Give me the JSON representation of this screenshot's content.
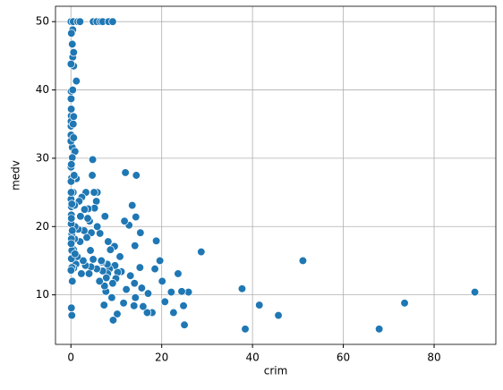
{
  "chart_data": {
    "type": "scatter",
    "x_label": "crim",
    "y_label": "medv",
    "color": "#1f77b4",
    "grid": true,
    "xlim": [
      -3.4,
      93.6
    ],
    "ylim": [
      2.75,
      52.25
    ],
    "xticks": [
      0,
      20,
      40,
      60,
      80
    ],
    "yticks": [
      10,
      20,
      30,
      40,
      50
    ],
    "x": [
      88.98,
      73.5,
      67.9,
      51.1,
      45.7,
      41.5,
      38.4,
      37.7,
      28.7,
      25.9,
      25.0,
      24.8,
      24.4,
      23.6,
      22.6,
      22.1,
      20.7,
      20.1,
      19.6,
      18.8,
      18.5,
      17.9,
      17.0,
      16.8,
      15.9,
      15.6,
      15.3,
      15.2,
      14.4,
      14.3,
      14.2,
      14.1,
      14.0,
      13.9,
      13.5,
      13.1,
      12.8,
      12.2,
      12.0,
      11.8,
      11.6,
      11.1,
      10.8,
      10.3,
      10.2,
      9.9,
      9.7,
      9.6,
      9.3,
      9.2,
      9.0,
      8.7,
      8.5,
      8.2,
      8.1,
      8.0,
      7.8,
      7.7,
      7.5,
      7.4,
      7.3,
      7.0,
      6.8,
      6.7,
      6.4,
      6.3,
      5.8,
      5.7,
      5.6,
      5.8,
      5.2,
      5.1,
      4.9,
      4.8,
      4.7,
      4.5,
      4.4,
      4.3,
      4.1,
      4.0,
      3.8,
      3.7,
      3.5,
      3.3,
      3.2,
      3.0,
      2.9,
      2.7,
      2.4,
      2.3,
      2.1,
      2.0,
      1.8,
      1.6,
      1.4,
      1.2,
      1.1,
      0.9,
      0.8,
      0.6,
      0.5,
      0.01,
      0.5,
      1.5,
      2.0,
      4.9,
      5.7,
      6.5,
      7.0,
      8.3,
      9.2,
      0.02,
      0.03,
      0.03,
      0.07,
      0.03,
      0.1,
      0.14,
      0.2,
      0.2,
      0.09,
      0.06,
      0.1,
      0.6,
      0.8,
      0.3,
      1.2,
      0.6,
      0.4,
      0.3,
      0.4,
      0.1,
      0.02,
      0.05,
      0.04,
      0.07,
      0.03,
      0.6,
      0.9,
      0.0,
      0.3,
      0.1,
      0.04,
      0.05,
      0.2,
      0.1,
      0.3,
      0.05,
      0.1,
      0.2,
      0.02,
      0.3,
      0.1,
      0.2,
      0.9,
      0.7,
      0.6,
      0.5,
      0.4,
      0.6
    ],
    "values": [
      10.4,
      8.8,
      5.0,
      15.0,
      7.0,
      8.5,
      5.0,
      10.9,
      16.3,
      10.4,
      5.6,
      8.4,
      10.5,
      13.1,
      7.4,
      10.4,
      9.0,
      12.0,
      15.0,
      17.9,
      13.8,
      7.4,
      10.2,
      7.4,
      8.3,
      11.0,
      19.1,
      14.0,
      27.5,
      21.4,
      9.6,
      17.2,
      11.7,
      8.4,
      23.1,
      12.8,
      20.2,
      10.8,
      27.9,
      20.8,
      8.8,
      13.4,
      15.6,
      13.3,
      7.2,
      12.4,
      14.3,
      17.1,
      6.3,
      11.7,
      9.6,
      16.6,
      13.8,
      17.8,
      13.1,
      14.5,
      12.5,
      10.5,
      21.5,
      11.3,
      8.5,
      13.5,
      14.8,
      15.0,
      19.0,
      12.0,
      20.0,
      13.8,
      23.7,
      25.0,
      22.7,
      25.0,
      15.2,
      29.8,
      27.5,
      19.1,
      14.1,
      16.5,
      20.8,
      13.1,
      22.6,
      21.2,
      18.4,
      25.0,
      14.3,
      22.5,
      19.4,
      15.0,
      24.3,
      13.1,
      21.5,
      17.8,
      23.7,
      19.6,
      15.6,
      27.0,
      14.5,
      20.0,
      18.2,
      16.6,
      25.0,
      50,
      50,
      50,
      50,
      50,
      50,
      50,
      50,
      50,
      50,
      24,
      34.7,
      33.4,
      36.2,
      28.7,
      22.9,
      27.1,
      16.5,
      18.9,
      21.7,
      20.4,
      18.2,
      13.9,
      23.1,
      31.6,
      41.3,
      43.5,
      44.8,
      46.7,
      48.8,
      48.3,
      43.8,
      39.8,
      38.7,
      37.2,
      35.4,
      36.1,
      31.0,
      32.5,
      30.1,
      29.1,
      26.6,
      25.0,
      23.3,
      21.2,
      19.4,
      17.5,
      15.3,
      14.0,
      13.6,
      12.0,
      8.1,
      7.0,
      16.0,
      27.5,
      33.0,
      35.0,
      40.0,
      45.5
    ]
  }
}
